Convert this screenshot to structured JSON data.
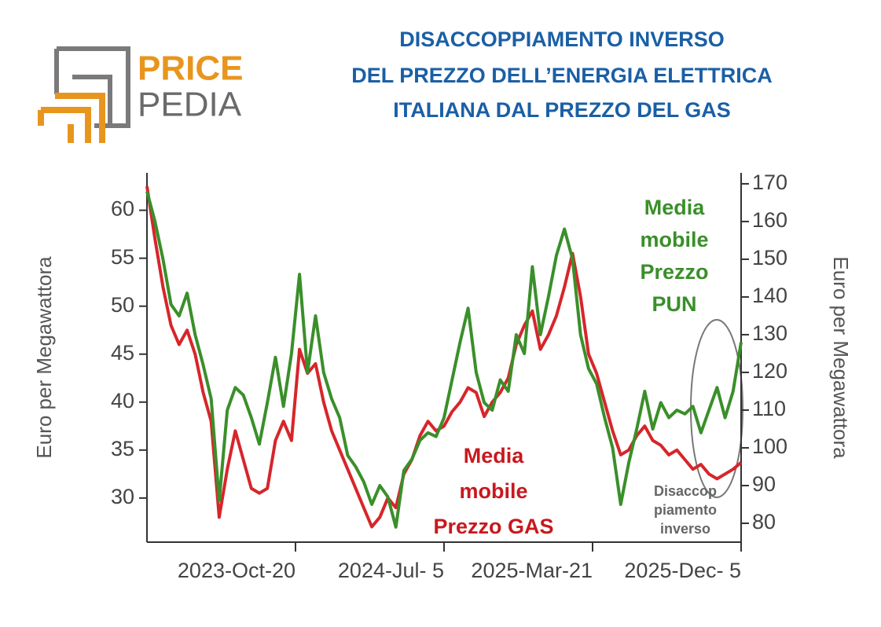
{
  "logo": {
    "top": "PRICE",
    "bottom": "PEDIA"
  },
  "chart_data": {
    "type": "line",
    "title": [
      "DISACCOPPIAMENTO INVERSO",
      "DEL PREZZO DELL’ENERGIA ELETTRICA",
      "ITALIANA DAL PREZZO DEL GAS"
    ],
    "ylabel": "Euro per Megawattora",
    "y2label": "Euro per Megawattora",
    "x": [
      "2023-02-03",
      "2023-02-17",
      "2023-03-03",
      "2023-03-17",
      "2023-03-31",
      "2023-04-14",
      "2023-04-28",
      "2023-05-12",
      "2023-05-26",
      "2023-06-09",
      "2023-06-23",
      "2023-07-07",
      "2023-07-21",
      "2023-08-04",
      "2023-08-18",
      "2023-09-01",
      "2023-09-15",
      "2023-09-29",
      "2023-10-13",
      "2023-10-27",
      "2023-11-10",
      "2023-11-24",
      "2023-12-08",
      "2023-12-22",
      "2024-01-05",
      "2024-01-19",
      "2024-02-02",
      "2024-02-16",
      "2024-03-01",
      "2024-03-15",
      "2024-03-29",
      "2024-04-12",
      "2024-04-26",
      "2024-05-10",
      "2024-05-24",
      "2024-06-07",
      "2024-06-21",
      "2024-07-05",
      "2024-07-19",
      "2024-08-02",
      "2024-08-16",
      "2024-08-30",
      "2024-09-13",
      "2024-09-27",
      "2024-10-11",
      "2024-10-25",
      "2024-11-08",
      "2024-11-22",
      "2024-12-06",
      "2024-12-20",
      "2025-01-03",
      "2025-01-17",
      "2025-01-31",
      "2025-02-14",
      "2025-02-28",
      "2025-03-14",
      "2025-03-28",
      "2025-04-11",
      "2025-04-25",
      "2025-05-09",
      "2025-05-23",
      "2025-06-06",
      "2025-06-20",
      "2025-07-04",
      "2025-07-18",
      "2025-08-01",
      "2025-08-15",
      "2025-08-29",
      "2025-09-12",
      "2025-09-26",
      "2025-10-10",
      "2025-10-24",
      "2025-11-07",
      "2025-11-21",
      "2025-12-05"
    ],
    "xlim": [
      "2023-02-03",
      "2025-12-05"
    ],
    "xticks": [
      {
        "value": "2023-10-20",
        "label": "2023-Oct-20"
      },
      {
        "value": "2024-07-05",
        "label": "2024-Jul- 5"
      },
      {
        "value": "2025-03-21",
        "label": "2025-Mar-21"
      },
      {
        "value": "2025-12-05",
        "label": "2025-Dec- 5"
      }
    ],
    "ylim": [
      25.4,
      63.9
    ],
    "yticks": [
      30,
      35,
      40,
      45,
      50,
      55,
      60
    ],
    "y2lim": [
      75,
      172.9
    ],
    "y2ticks": [
      80,
      90,
      100,
      110,
      120,
      130,
      140,
      150,
      160,
      170
    ],
    "series": [
      {
        "name": "Media mobile Prezzo GAS",
        "color": "#d6262b",
        "values": [
          62.5,
          57,
          52,
          48,
          46,
          47.5,
          45,
          41,
          38,
          28,
          33,
          37,
          34,
          31,
          30.5,
          31,
          36,
          38,
          36,
          45.5,
          43,
          44,
          40,
          37,
          35,
          33,
          31,
          29,
          27,
          28,
          30,
          29,
          32.5,
          34,
          36.5,
          38,
          37,
          37.5,
          39,
          40,
          41.5,
          41,
          38.5,
          40,
          41,
          42.5,
          46,
          48,
          49.5,
          45.5,
          47,
          49,
          52,
          55.5,
          51,
          45,
          43,
          40,
          37,
          34.5,
          35,
          36.5,
          37.5,
          36,
          35.5,
          34.5,
          35,
          34,
          33,
          33.5,
          32.5,
          32,
          32.5,
          33,
          33.7
        ]
      },
      {
        "name": "Media mobile Prezzo PUN",
        "color": "#3a8f2a",
        "axis": "y2",
        "values": [
          168,
          160,
          150,
          138,
          135,
          141,
          130,
          122,
          113,
          86,
          110,
          116,
          114,
          108,
          101,
          112,
          124,
          111,
          125,
          146,
          120,
          135,
          120,
          113,
          108,
          98,
          95,
          91,
          85,
          90,
          87,
          79,
          94,
          97,
          102,
          104,
          103,
          108,
          118,
          128,
          137,
          120,
          112,
          110,
          118,
          115,
          130,
          125,
          148,
          130,
          140,
          151,
          158,
          150,
          130,
          121,
          117,
          108,
          100,
          85,
          96,
          105,
          115,
          105,
          112,
          108,
          110,
          109,
          111,
          104,
          110,
          116,
          108,
          115,
          128
        ]
      }
    ],
    "annotations": [
      {
        "lines": [
          "Media",
          "mobile",
          "Prezzo",
          "PUN"
        ],
        "color": "#3a8f2a"
      },
      {
        "lines": [
          "Media",
          "mobile",
          "Prezzo GAS"
        ],
        "color": "#c8181e"
      },
      {
        "lines": [
          "Disaccop",
          "piamento",
          "inverso"
        ],
        "color": "#666666"
      }
    ]
  }
}
